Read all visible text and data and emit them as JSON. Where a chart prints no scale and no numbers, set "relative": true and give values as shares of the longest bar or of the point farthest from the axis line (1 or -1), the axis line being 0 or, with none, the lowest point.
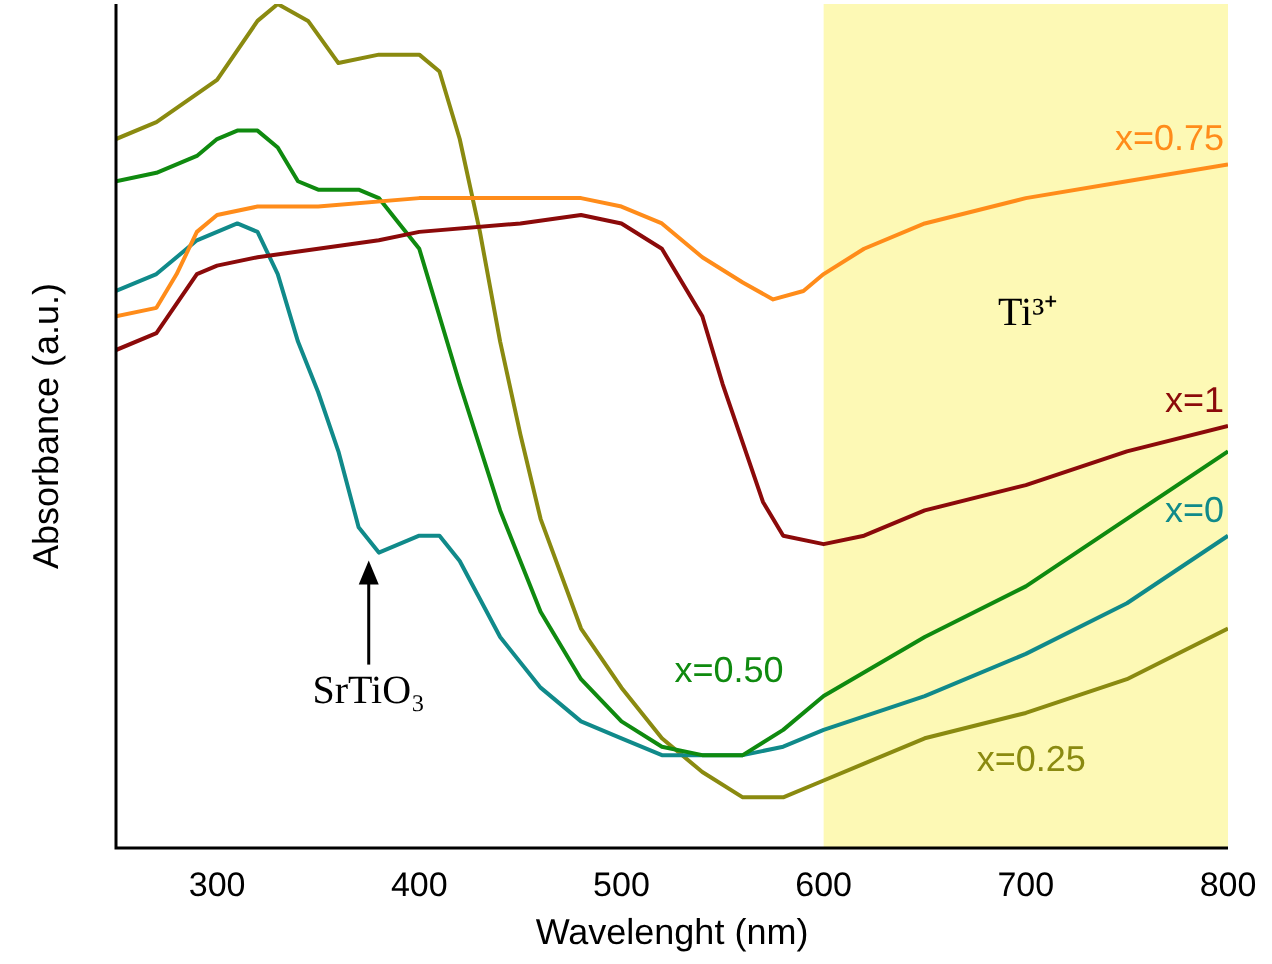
{
  "chart_data": {
    "type": "line",
    "relative": true,
    "xlabel": "Wavelenght (nm)",
    "ylabel": "Absorbance (a.u.)",
    "xlim": [
      250,
      800
    ],
    "xticks": [
      300,
      400,
      500,
      600,
      700,
      800
    ],
    "grid": false,
    "legend": false,
    "marker": "none",
    "line_style": "solid",
    "bands": [
      {
        "axis": "x",
        "from": 600,
        "to": 800,
        "color": "#fdf9b5"
      }
    ],
    "annotations": [
      "Ti³⁺",
      {
        "text": "SrTiO₃",
        "x": 375,
        "y": 0.35
      }
    ],
    "series": [
      {
        "name": "x=0.75",
        "color": "#ff8c1a",
        "x": [
          250,
          270,
          280,
          290,
          300,
          320,
          350,
          400,
          450,
          480,
          500,
          520,
          540,
          560,
          575,
          590,
          600,
          620,
          650,
          700,
          750,
          800
        ],
        "values": [
          0.63,
          0.64,
          0.68,
          0.73,
          0.75,
          0.76,
          0.76,
          0.77,
          0.77,
          0.77,
          0.76,
          0.74,
          0.7,
          0.67,
          0.65,
          0.66,
          0.68,
          0.71,
          0.74,
          0.77,
          0.79,
          0.81
        ]
      },
      {
        "name": "x=1",
        "color": "#8b0a0a",
        "x": [
          250,
          270,
          290,
          300,
          320,
          350,
          380,
          400,
          450,
          480,
          500,
          520,
          540,
          550,
          560,
          570,
          580,
          600,
          620,
          650,
          700,
          750,
          800
        ],
        "values": [
          0.59,
          0.61,
          0.68,
          0.69,
          0.7,
          0.71,
          0.72,
          0.73,
          0.74,
          0.75,
          0.74,
          0.71,
          0.63,
          0.55,
          0.48,
          0.41,
          0.37,
          0.36,
          0.37,
          0.4,
          0.43,
          0.47,
          0.5
        ]
      },
      {
        "name": "x=0.50",
        "color": "#0f8a0f",
        "x": [
          250,
          270,
          290,
          300,
          310,
          320,
          330,
          340,
          350,
          360,
          370,
          380,
          390,
          400,
          420,
          440,
          460,
          480,
          500,
          520,
          540,
          560,
          580,
          600,
          650,
          700,
          750,
          800
        ],
        "values": [
          0.79,
          0.8,
          0.82,
          0.84,
          0.85,
          0.85,
          0.83,
          0.79,
          0.78,
          0.78,
          0.78,
          0.77,
          0.74,
          0.71,
          0.55,
          0.4,
          0.28,
          0.2,
          0.15,
          0.12,
          0.11,
          0.11,
          0.14,
          0.18,
          0.25,
          0.31,
          0.39,
          0.47
        ]
      },
      {
        "name": "x=0",
        "color": "#108a8a",
        "x": [
          250,
          270,
          290,
          300,
          310,
          320,
          330,
          340,
          350,
          360,
          370,
          380,
          390,
          400,
          410,
          420,
          440,
          460,
          480,
          500,
          520,
          540,
          560,
          580,
          600,
          650,
          700,
          750,
          800
        ],
        "values": [
          0.66,
          0.68,
          0.72,
          0.73,
          0.74,
          0.73,
          0.68,
          0.6,
          0.54,
          0.47,
          0.38,
          0.35,
          0.36,
          0.37,
          0.37,
          0.34,
          0.25,
          0.19,
          0.15,
          0.13,
          0.11,
          0.11,
          0.11,
          0.12,
          0.14,
          0.18,
          0.23,
          0.29,
          0.37
        ]
      },
      {
        "name": "x=0.25",
        "color": "#8a8a10",
        "x": [
          250,
          270,
          300,
          320,
          330,
          345,
          360,
          380,
          390,
          400,
          410,
          420,
          430,
          440,
          450,
          460,
          480,
          500,
          520,
          540,
          560,
          580,
          600,
          620,
          650,
          700,
          750,
          800
        ],
        "values": [
          0.84,
          0.86,
          0.91,
          0.98,
          1,
          0.98,
          0.93,
          0.94,
          0.94,
          0.94,
          0.92,
          0.84,
          0.73,
          0.6,
          0.49,
          0.39,
          0.26,
          0.19,
          0.13,
          0.09,
          0.06,
          0.06,
          0.08,
          0.1,
          0.13,
          0.16,
          0.2,
          0.26
        ]
      }
    ]
  }
}
